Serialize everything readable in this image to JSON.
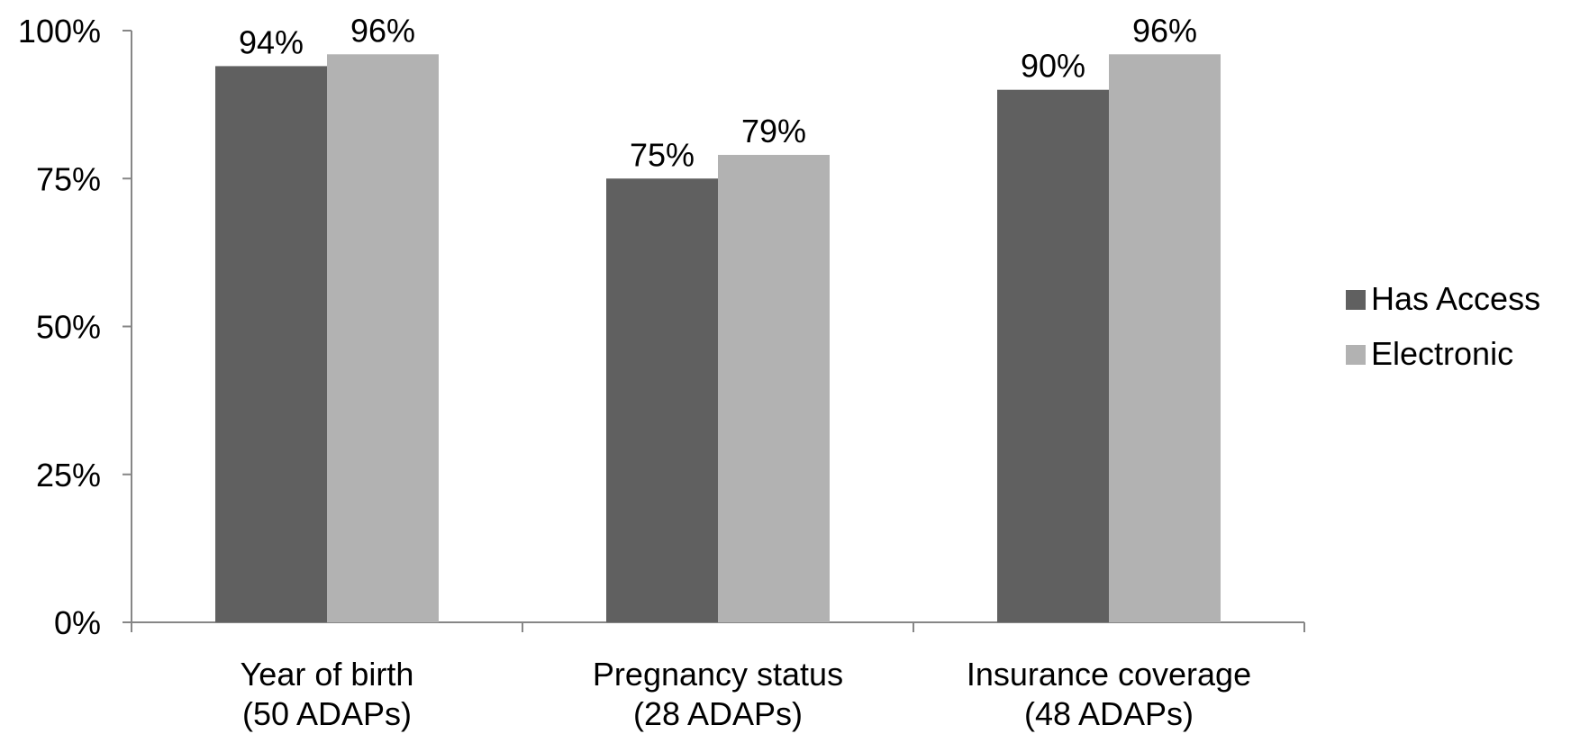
{
  "chart_data": {
    "type": "bar",
    "categories": [
      [
        "Year of birth",
        "(50 ADAPs)"
      ],
      [
        "Pregnancy status",
        "(28 ADAPs)"
      ],
      [
        "Insurance coverage",
        "(48 ADAPs)"
      ]
    ],
    "series": [
      {
        "name": "Has Access",
        "values": [
          94,
          75,
          90
        ],
        "labels": [
          "94%",
          "75%",
          "90%"
        ],
        "color": "#606060"
      },
      {
        "name": "Electronic",
        "values": [
          96,
          79,
          96
        ],
        "labels": [
          "96%",
          "79%",
          "96%"
        ],
        "color": "#b2b2b2"
      }
    ],
    "yticks": [
      0,
      25,
      50,
      75,
      100
    ],
    "ytick_labels": [
      "0%",
      "25%",
      "50%",
      "75%",
      "100%"
    ],
    "ylim": [
      0,
      100
    ],
    "title": "",
    "xlabel": "",
    "ylabel": "",
    "grid": false,
    "legend_position": "right"
  }
}
